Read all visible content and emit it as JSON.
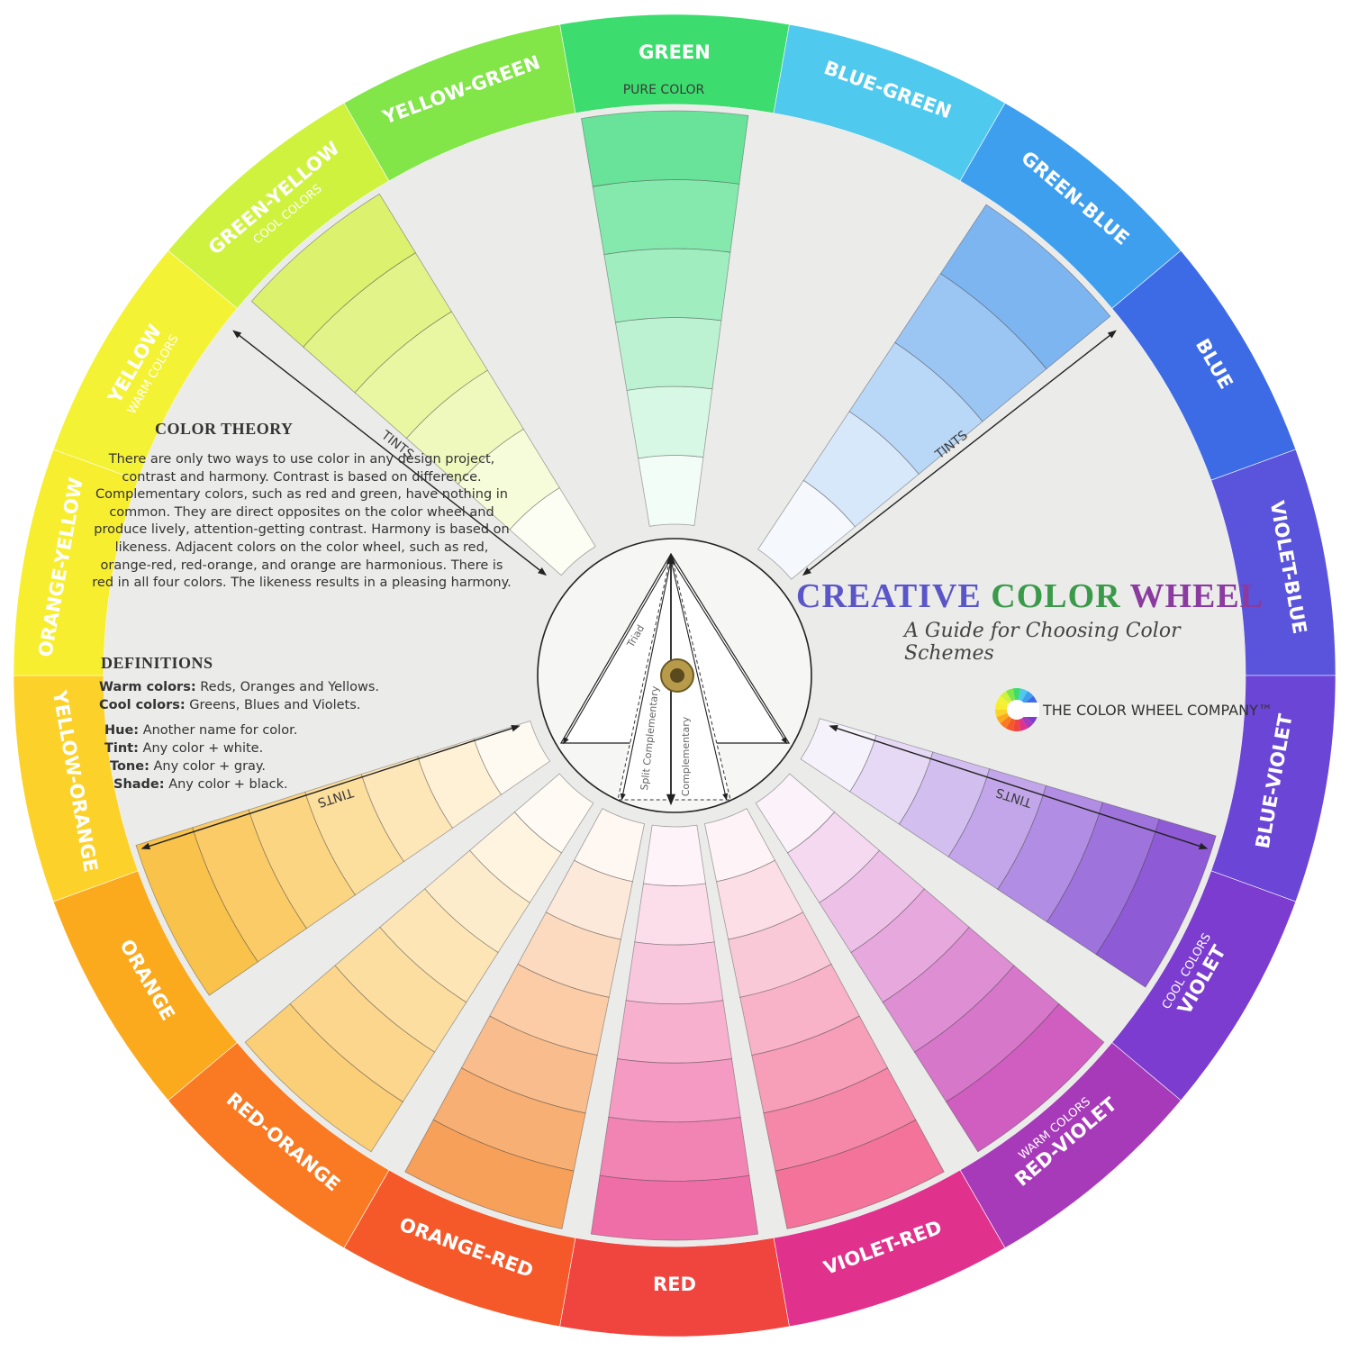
{
  "ring": [
    {
      "label": "GREEN",
      "color": "#3ddc6e"
    },
    {
      "label": "BLUE-GREEN",
      "color": "#4fc9ee"
    },
    {
      "label": "GREEN-BLUE",
      "color": "#3f9fef"
    },
    {
      "label": "BLUE",
      "color": "#3d6be6"
    },
    {
      "label": "VIOLET-BLUE",
      "color": "#5a54dc"
    },
    {
      "label": "BLUE-VIOLET",
      "color": "#6b45d6"
    },
    {
      "label": "VIOLET",
      "color": "#7b3ccf",
      "sub": "COOL COLORS"
    },
    {
      "label": "RED-VIOLET",
      "color": "#a73ab9",
      "sub": "WARM COLORS"
    },
    {
      "label": "VIOLET-RED",
      "color": "#e0328c"
    },
    {
      "label": "RED",
      "color": "#f0443f"
    },
    {
      "label": "ORANGE-RED",
      "color": "#f5592a"
    },
    {
      "label": "RED-ORANGE",
      "color": "#f97a22"
    },
    {
      "label": "ORANGE",
      "color": "#fbaa1e"
    },
    {
      "label": "YELLOW-ORANGE",
      "color": "#fcd22a"
    },
    {
      "label": "ORANGE-YELLOW",
      "color": "#f7ee30"
    },
    {
      "label": "YELLOW",
      "color": "#f4f235",
      "sub": "WARM COLORS"
    },
    {
      "label": "GREEN-YELLOW",
      "color": "#cff23e",
      "sub": "COOL COLORS"
    },
    {
      "label": "YELLOW-GREEN",
      "color": "#82e548"
    }
  ],
  "window_colors": {
    "green": "#69e39a",
    "blue": "#7db5f0",
    "yellowgreen": "#dcf26e",
    "violet": "#8e5ad6",
    "orange": "#f9c24a",
    "lightorange": "#fbcf78",
    "peach": "#f7a05a",
    "pink": "#f06ea7",
    "rose": "#f3739a",
    "magenta": "#d05ec0"
  },
  "labels": {
    "pure_color": "PURE COLOR",
    "tints": "TINTS",
    "triad": "Triad",
    "split": "Split Complementary",
    "complementary": "Complementary"
  },
  "theory": {
    "title": "COLOR THEORY",
    "text": "There are only two ways to use color in any design project, contrast and harmony.  Contrast is based on difference.  Complementary colors, such as red and green, have nothing in common.  They are direct opposites on the color wheel and produce lively, attention-getting contrast.  Harmony is based on likeness. Adjacent colors on the color wheel, such as red, orange-red, red-orange, and orange are harmonious.  There is red in all four colors.  The likeness results in a pleasing harmony."
  },
  "definitions": {
    "title": "DEFINITIONS",
    "warm_term": "Warm colors:",
    "warm_def": "Reds, Oranges and Yellows.",
    "cool_term": "Cool colors:",
    "cool_def": "Greens, Blues and Violets.",
    "hue_term": "Hue:",
    "hue_def": "Another name for color.",
    "tint_term": "Tint:",
    "tint_def": "Any color + white.",
    "tone_term": "Tone:",
    "tone_def": "Any color + gray.",
    "shade_term": "Shade:",
    "shade_def": "Any color + black."
  },
  "brand": {
    "word1": "CREATIVE",
    "word2": "COLOR",
    "word3": "WHEEL",
    "word1_color": "#5b56c8",
    "word2_color": "#3b9a4a",
    "word3_color": "#8b3aa0",
    "subtitle": "A Guide for Choosing Color Schemes",
    "company": "THE COLOR WHEEL COMPANY™"
  }
}
